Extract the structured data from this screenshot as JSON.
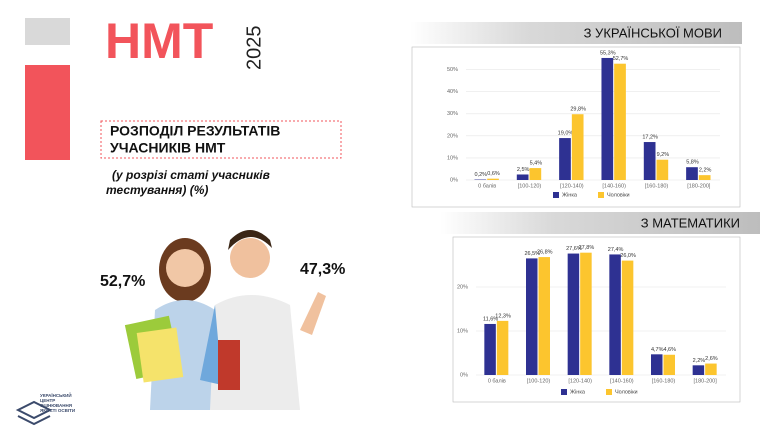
{
  "slide": {
    "brand": "НМТ",
    "year": "2025",
    "heading": [
      "РОЗПОДІЛ РЕЗУЛЬТАТІВ",
      "УЧАСНИКІВ НМТ"
    ],
    "subheading": [
      "(у розрізі статі учасників",
      "тестування) (%)"
    ],
    "female_share": "52,7%",
    "male_share": "47,3%",
    "logo": [
      "УКРАЇНСЬКИЙ",
      "ЦЕНТР",
      "ОЦІНЮВАННЯ",
      "ЯКОСТІ ОСВІТИ"
    ]
  },
  "chart_data": [
    {
      "type": "bar",
      "title": "З УКРАЇНСЬКОЇ МОВИ",
      "categories": [
        "0 балів",
        "[100-120)",
        "[120-140)",
        "[140-160)",
        "[160-180)",
        "[180-200]"
      ],
      "series": [
        {
          "name": "Жінка",
          "color": "#2e3192",
          "values": [
            0.2,
            2.5,
            19.0,
            55.3,
            17.2,
            5.8
          ],
          "value_labels": [
            "0,2%",
            "2,5%",
            "19,0%",
            "55,3%",
            "17,2%",
            "5,8%"
          ]
        },
        {
          "name": "Чоловіки",
          "color": "#fcc52e",
          "values": [
            0.6,
            5.4,
            29.8,
            52.7,
            9.2,
            2.2
          ],
          "value_labels": [
            "0,6%",
            "5,4%",
            "29,8%",
            "52,7%",
            "9,2%",
            "2,2%"
          ]
        }
      ],
      "ylim": [
        0,
        58
      ],
      "yticks": [
        {
          "value": 0,
          "label": "0%"
        },
        {
          "value": 10,
          "label": "10%"
        },
        {
          "value": 20,
          "label": "20%"
        },
        {
          "value": 30,
          "label": "30%"
        },
        {
          "value": 40,
          "label": "40%"
        },
        {
          "value": 50,
          "label": "50%"
        }
      ],
      "grid": true,
      "legend": "bottom"
    },
    {
      "type": "bar",
      "title": "З МАТЕМАТИКИ",
      "categories": [
        "0 балів",
        "[100-120)",
        "[120-140)",
        "[140-160)",
        "[160-180)",
        "[180-200]"
      ],
      "series": [
        {
          "name": "Жінка",
          "color": "#2e3192",
          "values": [
            11.6,
            26.5,
            27.6,
            27.4,
            4.7,
            2.2
          ],
          "value_labels": [
            "11,6%",
            "26,5%",
            "27,6%",
            "27,4%",
            "4,7%",
            "2,2%"
          ]
        },
        {
          "name": "Чоловіки",
          "color": "#fcc52e",
          "values": [
            12.3,
            26.8,
            27.8,
            26.0,
            4.6,
            2.6
          ],
          "value_labels": [
            "12,3%",
            "26,8%",
            "27,8%",
            "26,0%",
            "4,6%",
            "2,6%"
          ]
        }
      ],
      "ylim": [
        0,
        30
      ],
      "yticks": [
        {
          "value": 0,
          "label": "0%"
        },
        {
          "value": 10,
          "label": "10%"
        },
        {
          "value": 20,
          "label": "20%"
        }
      ],
      "grid": true,
      "legend": "bottom"
    }
  ]
}
